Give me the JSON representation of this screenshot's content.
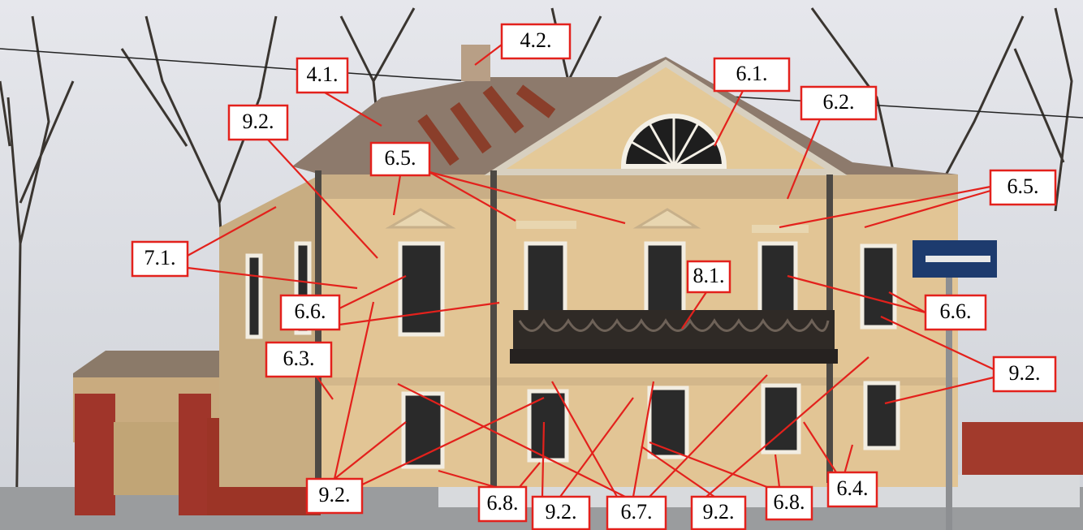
{
  "labels": [
    {
      "text": "4.2."
    },
    {
      "text": "4.1."
    },
    {
      "text": "6.1."
    },
    {
      "text": "9.2."
    },
    {
      "text": "6.2."
    },
    {
      "text": "6.5."
    },
    {
      "text": "6.5."
    },
    {
      "text": "7.1."
    },
    {
      "text": "8.1."
    },
    {
      "text": "6.6."
    },
    {
      "text": "6.6."
    },
    {
      "text": "6.3."
    },
    {
      "text": "9.2."
    },
    {
      "text": "9.2."
    },
    {
      "text": "6.8."
    },
    {
      "text": "9.2."
    },
    {
      "text": "6.7."
    },
    {
      "text": "9.2."
    },
    {
      "text": "6.8."
    },
    {
      "text": "6.4."
    }
  ]
}
